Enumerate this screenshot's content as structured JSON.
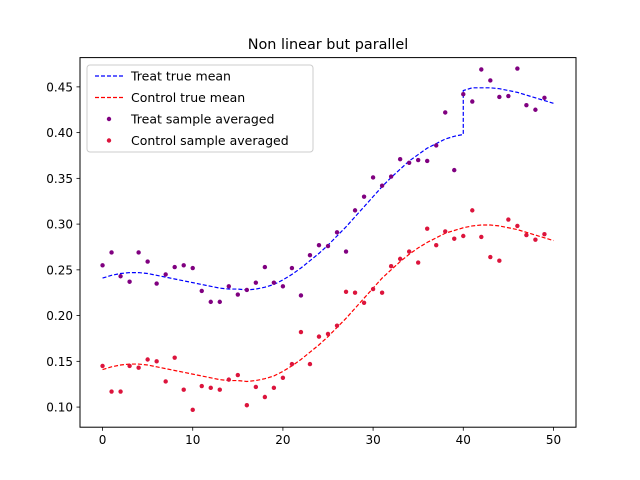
{
  "chart_data": {
    "type": "line",
    "title": "Non linear but parallel",
    "xlabel": "",
    "ylabel": "",
    "xlim": [
      -2.5,
      52.5
    ],
    "ylim": [
      0.078,
      0.482
    ],
    "x_ticks": [
      0,
      10,
      20,
      30,
      40,
      50
    ],
    "y_ticks": [
      0.1,
      0.15,
      0.2,
      0.25,
      0.3,
      0.35,
      0.4,
      0.45
    ],
    "y_tick_labels": [
      "0.10",
      "0.15",
      "0.20",
      "0.25",
      "0.30",
      "0.35",
      "0.40",
      "0.45"
    ],
    "grid": false,
    "legend_position": "upper-left",
    "colors": {
      "treat_mean": "#0000ff",
      "control_mean": "#ff0000",
      "treat_sample": "#800080",
      "control_sample": "#dc143c"
    },
    "series": [
      {
        "name": "Treat true mean",
        "style": "dashed-line",
        "x": [
          0,
          1,
          2,
          3,
          4,
          5,
          6,
          7,
          8,
          9,
          10,
          11,
          12,
          13,
          14,
          15,
          16,
          17,
          18,
          19,
          20,
          21,
          22,
          23,
          24,
          25,
          26,
          27,
          28,
          29,
          30,
          31,
          32,
          33,
          34,
          35,
          36,
          37,
          38,
          39,
          40,
          40,
          41,
          42,
          43,
          44,
          45,
          46,
          47,
          48,
          49,
          50
        ],
        "y": [
          0.241,
          0.244,
          0.246,
          0.247,
          0.247,
          0.246,
          0.244,
          0.242,
          0.24,
          0.238,
          0.236,
          0.234,
          0.232,
          0.23,
          0.229,
          0.229,
          0.228,
          0.229,
          0.231,
          0.234,
          0.239,
          0.245,
          0.252,
          0.26,
          0.268,
          0.277,
          0.287,
          0.297,
          0.308,
          0.319,
          0.33,
          0.341,
          0.351,
          0.36,
          0.369,
          0.376,
          0.383,
          0.388,
          0.393,
          0.396,
          0.398,
          0.446,
          0.449,
          0.449,
          0.449,
          0.448,
          0.446,
          0.444,
          0.441,
          0.438,
          0.435,
          0.432
        ]
      },
      {
        "name": "Control true mean",
        "style": "dashed-line",
        "x": [
          0,
          1,
          2,
          3,
          4,
          5,
          6,
          7,
          8,
          9,
          10,
          11,
          12,
          13,
          14,
          15,
          16,
          17,
          18,
          19,
          20,
          21,
          22,
          23,
          24,
          25,
          26,
          27,
          28,
          29,
          30,
          31,
          32,
          33,
          34,
          35,
          36,
          37,
          38,
          39,
          40,
          41,
          42,
          43,
          44,
          45,
          46,
          47,
          48,
          49,
          50
        ],
        "y": [
          0.141,
          0.144,
          0.146,
          0.147,
          0.147,
          0.146,
          0.144,
          0.142,
          0.14,
          0.138,
          0.136,
          0.134,
          0.132,
          0.13,
          0.129,
          0.129,
          0.128,
          0.129,
          0.131,
          0.134,
          0.139,
          0.145,
          0.152,
          0.16,
          0.168,
          0.177,
          0.187,
          0.197,
          0.208,
          0.219,
          0.23,
          0.241,
          0.25,
          0.259,
          0.267,
          0.274,
          0.28,
          0.285,
          0.29,
          0.293,
          0.296,
          0.298,
          0.299,
          0.299,
          0.298,
          0.296,
          0.294,
          0.291,
          0.288,
          0.285,
          0.282
        ]
      },
      {
        "name": "Treat sample averaged",
        "style": "points",
        "x": [
          0,
          1,
          2,
          3,
          4,
          5,
          6,
          7,
          8,
          9,
          10,
          11,
          12,
          13,
          14,
          15,
          16,
          17,
          18,
          19,
          20,
          21,
          22,
          23,
          24,
          25,
          26,
          27,
          28,
          29,
          30,
          31,
          32,
          33,
          34,
          35,
          36,
          37,
          38,
          39,
          40,
          41,
          42,
          43,
          44,
          45,
          46,
          47,
          48,
          49
        ],
        "y": [
          0.255,
          0.269,
          0.243,
          0.237,
          0.269,
          0.259,
          0.235,
          0.245,
          0.253,
          0.255,
          0.252,
          0.227,
          0.215,
          0.215,
          0.232,
          0.223,
          0.228,
          0.236,
          0.253,
          0.236,
          0.232,
          0.252,
          0.222,
          0.266,
          0.277,
          0.276,
          0.291,
          0.27,
          0.315,
          0.33,
          0.351,
          0.342,
          0.352,
          0.371,
          0.367,
          0.37,
          0.369,
          0.386,
          0.422,
          0.359,
          0.442,
          0.434,
          0.469,
          0.457,
          0.439,
          0.44,
          0.47,
          0.43,
          0.425,
          0.438
        ]
      },
      {
        "name": "Control sample averaged",
        "style": "points",
        "x": [
          0,
          1,
          2,
          3,
          4,
          5,
          6,
          7,
          8,
          9,
          10,
          11,
          12,
          13,
          14,
          15,
          16,
          17,
          18,
          19,
          20,
          21,
          22,
          23,
          24,
          25,
          26,
          27,
          28,
          29,
          30,
          31,
          32,
          33,
          34,
          35,
          36,
          37,
          38,
          39,
          40,
          41,
          42,
          43,
          44,
          45,
          46,
          47,
          48,
          49
        ],
        "y": [
          0.145,
          0.117,
          0.117,
          0.145,
          0.143,
          0.152,
          0.15,
          0.128,
          0.154,
          0.119,
          0.097,
          0.123,
          0.121,
          0.119,
          0.13,
          0.135,
          0.102,
          0.122,
          0.111,
          0.121,
          0.132,
          0.147,
          0.182,
          0.147,
          0.177,
          0.18,
          0.189,
          0.226,
          0.225,
          0.214,
          0.229,
          0.225,
          0.254,
          0.262,
          0.27,
          0.258,
          0.295,
          0.277,
          0.292,
          0.284,
          0.287,
          0.315,
          0.286,
          0.264,
          0.26,
          0.305,
          0.298,
          0.288,
          0.283,
          0.289
        ]
      }
    ]
  }
}
